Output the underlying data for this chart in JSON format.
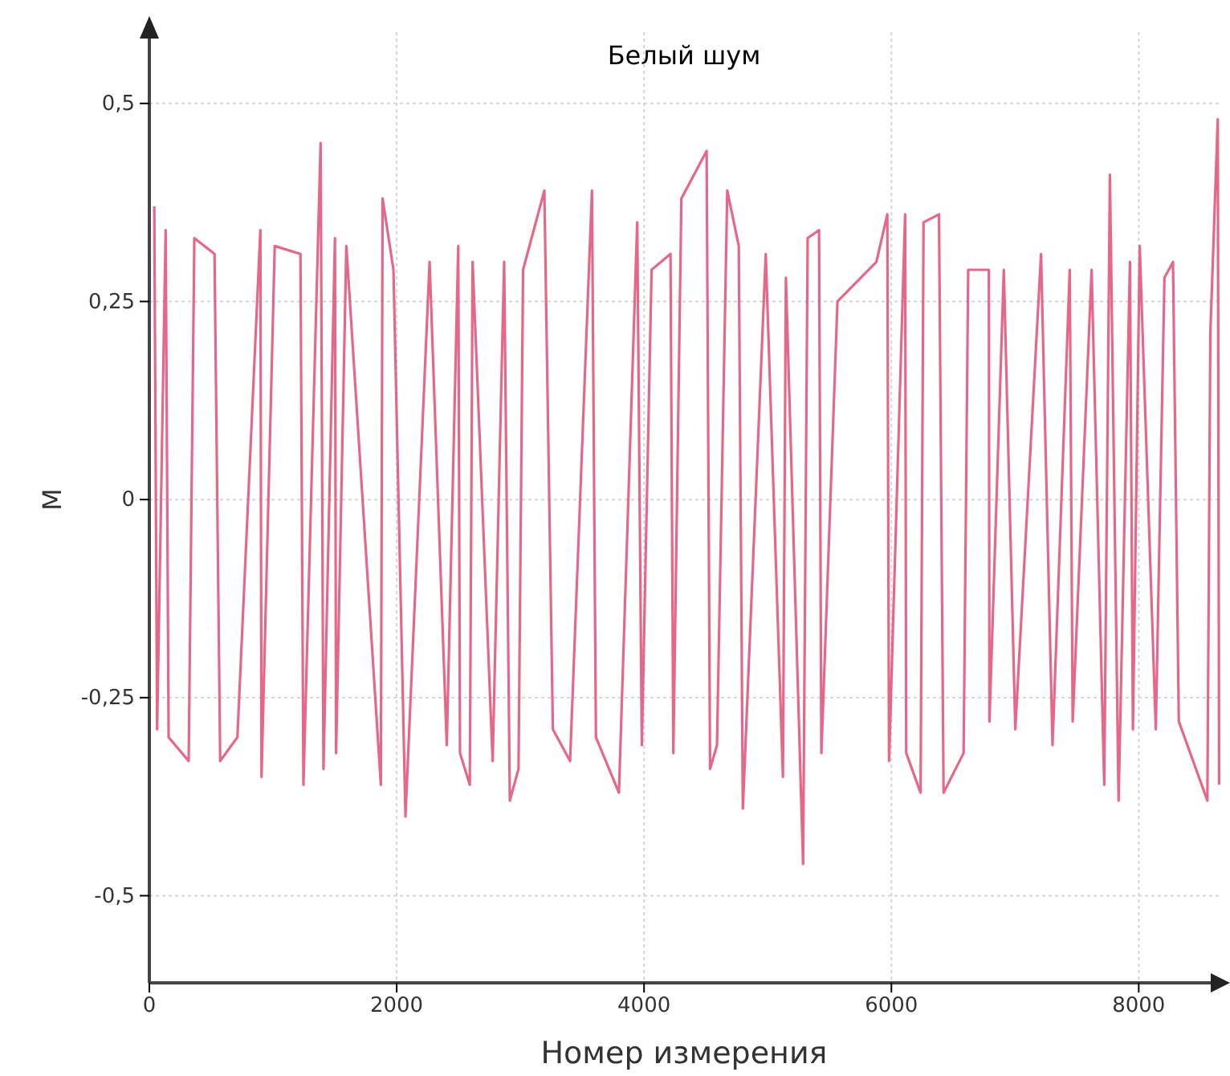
{
  "chart_data": {
    "type": "line",
    "title": "Белый шум",
    "xlabel": "Номер измерения",
    "ylabel": "M",
    "x": [
      40,
      63,
      132,
      156,
      318,
      364,
      527,
      573,
      712,
      898,
      907,
      1014,
      1222,
      1246,
      1385,
      1408,
      1501,
      1510,
      1593,
      1872,
      1886,
      1974,
      2071,
      2266,
      2405,
      2498,
      2512,
      2591,
      2614,
      2776,
      2869,
      2915,
      2985,
      3022,
      3194,
      3263,
      3402,
      3579,
      3611,
      3797,
      3945,
      3982,
      4061,
      4214,
      4237,
      4302,
      4506,
      4534,
      4590,
      4673,
      4766,
      4799,
      4984,
      5123,
      5147,
      5286,
      5323,
      5415,
      5434,
      5564,
      5879,
      5967,
      5981,
      6111,
      6120,
      6236,
      6260,
      6385,
      6422,
      6584,
      6621,
      6788,
      6793,
      6909,
      7002,
      7210,
      7303,
      7442,
      7466,
      7619,
      7721,
      7767,
      7837,
      7929,
      7953,
      8008,
      8138,
      8208,
      8277,
      8324,
      8555,
      8579,
      8639,
      8650
    ],
    "series": [
      {
        "color": "#e2577c",
        "values": [
          0.37,
          -0.29,
          0.34,
          -0.3,
          -0.33,
          0.33,
          0.31,
          -0.33,
          -0.3,
          0.34,
          -0.35,
          0.32,
          0.31,
          -0.36,
          0.45,
          -0.34,
          0.33,
          -0.32,
          0.32,
          -0.36,
          0.38,
          0.29,
          -0.4,
          0.3,
          -0.31,
          0.32,
          -0.32,
          -0.36,
          0.3,
          -0.33,
          0.3,
          -0.38,
          -0.34,
          0.29,
          0.39,
          -0.29,
          -0.33,
          0.39,
          -0.3,
          -0.37,
          0.35,
          -0.31,
          0.29,
          0.31,
          -0.32,
          0.38,
          0.44,
          -0.34,
          -0.31,
          0.39,
          0.32,
          -0.39,
          0.31,
          -0.35,
          0.28,
          -0.46,
          0.33,
          0.34,
          -0.32,
          0.25,
          0.3,
          0.36,
          -0.33,
          0.36,
          -0.32,
          -0.37,
          0.35,
          0.36,
          -0.37,
          -0.32,
          0.29,
          0.29,
          -0.28,
          0.29,
          -0.29,
          0.31,
          -0.31,
          0.29,
          -0.28,
          0.29,
          -0.36,
          0.41,
          -0.38,
          0.3,
          -0.29,
          0.32,
          -0.29,
          0.28,
          0.3,
          -0.28,
          -0.38,
          0.21,
          0.48,
          -0.36
        ]
      }
    ],
    "xlim": [
      0,
      8660
    ],
    "ylim": [
      -0.61,
      0.59
    ],
    "xticks": [
      0,
      2000,
      4000,
      6000,
      8000
    ],
    "yticks": [
      {
        "value": -0.5,
        "label": "-0,5"
      },
      {
        "value": -0.25,
        "label": "-0,25"
      },
      0,
      {
        "value": 0.25,
        "label": "0,25"
      },
      {
        "value": 0.5,
        "label": "0,5"
      }
    ],
    "grid": true,
    "marker": "none",
    "line_style": "solid"
  }
}
